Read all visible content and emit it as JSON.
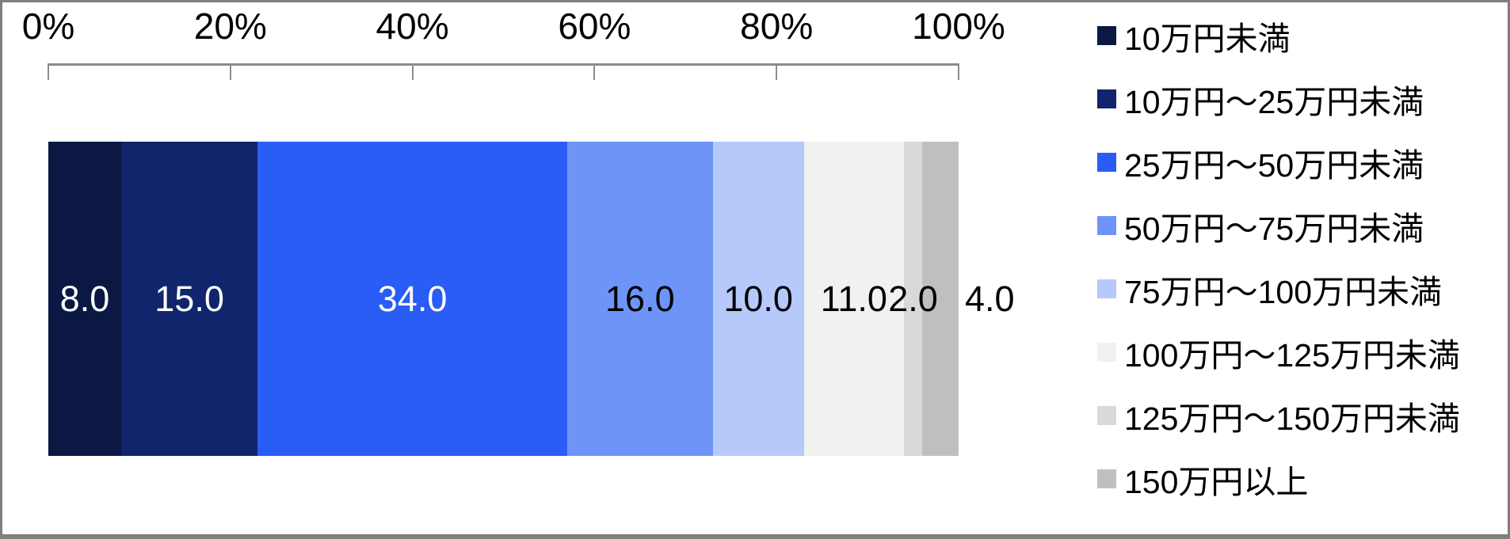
{
  "chart_data": {
    "type": "bar",
    "variant": "horizontal-stacked-100pct",
    "title": "",
    "categories": [
      "10万円未満",
      "10万円～25万円未満",
      "25万円～50万円未満",
      "50万円～75万円未満",
      "75万円～100万円未満",
      "100万円～125万円未満",
      "125万円～150万円未満",
      "150万円以上"
    ],
    "values": [
      8.0,
      15.0,
      34.0,
      16.0,
      10.0,
      11.0,
      2.0,
      4.0
    ],
    "value_labels": [
      "8.0",
      "15.0",
      "34.0",
      "16.0",
      "10.0",
      "11.0",
      "2.0",
      "4.0"
    ],
    "segment_colors": [
      "#0B1843",
      "#10256B",
      "#2A5CF6",
      "#6E94F8",
      "#B7C9FA",
      "#F1F1EF",
      "#D9D9D9",
      "#BFBFBF"
    ],
    "value_label_colors": [
      "#FFFFFF",
      "#FFFFFF",
      "#FFFFFF",
      "#000000",
      "#000000",
      "#000000",
      "#000000",
      "#000000"
    ],
    "value_label_outside": [
      false,
      false,
      false,
      false,
      false,
      false,
      false,
      true
    ],
    "x_axis": {
      "ticks": [
        "0%",
        "20%",
        "40%",
        "60%",
        "80%",
        "100%"
      ],
      "range": [
        0,
        100
      ],
      "position": "top"
    },
    "legend_position": "right",
    "grid": false
  },
  "colors": {
    "background": "#FFFFFF",
    "axis_line": "#8C8C8C",
    "frame_border": "#7F7F7F",
    "text": "#000000"
  }
}
